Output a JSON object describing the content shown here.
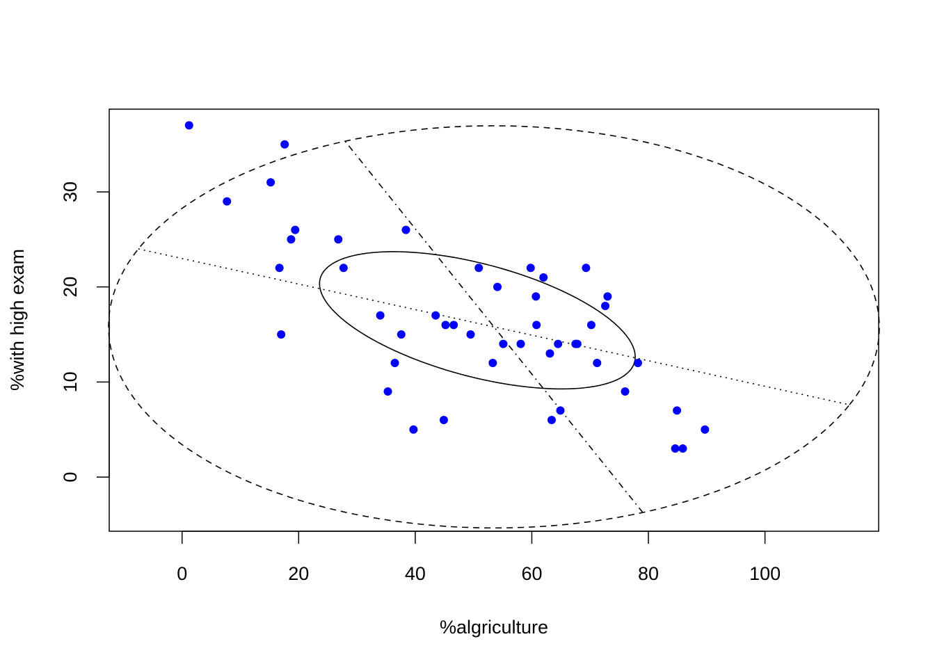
{
  "chart_data": {
    "type": "scatter",
    "title": "",
    "xlabel": "%algriculture",
    "ylabel": "%with high exam",
    "xlim": [
      -12.5,
      119.5
    ],
    "ylim": [
      -5.7,
      38.7
    ],
    "x_ticks": [
      0,
      20,
      40,
      60,
      80,
      100
    ],
    "y_ticks": [
      0,
      10,
      20,
      30
    ],
    "grid": false,
    "point_color": "#0000FF",
    "series": [
      {
        "points": [
          [
            1.2,
            37
          ],
          [
            17.6,
            35
          ],
          [
            15.2,
            31
          ],
          [
            7.7,
            29
          ],
          [
            19.4,
            26
          ],
          [
            38.4,
            26
          ],
          [
            18.7,
            25
          ],
          [
            26.8,
            25
          ],
          [
            16.7,
            22
          ],
          [
            27.7,
            22
          ],
          [
            50.9,
            22
          ],
          [
            59.8,
            22
          ],
          [
            69.3,
            22
          ],
          [
            62.0,
            21
          ],
          [
            54.1,
            20
          ],
          [
            60.7,
            19
          ],
          [
            73.0,
            19
          ],
          [
            72.6,
            18
          ],
          [
            34.0,
            17
          ],
          [
            43.5,
            17
          ],
          [
            17.0,
            15
          ],
          [
            37.6,
            15
          ],
          [
            49.5,
            15
          ],
          [
            45.2,
            16
          ],
          [
            46.6,
            16
          ],
          [
            60.8,
            16
          ],
          [
            70.2,
            16
          ],
          [
            55.1,
            14
          ],
          [
            58.1,
            14
          ],
          [
            64.5,
            14
          ],
          [
            67.5,
            14
          ],
          [
            67.8,
            14
          ],
          [
            63.1,
            13
          ],
          [
            36.5,
            12
          ],
          [
            53.3,
            12
          ],
          [
            71.2,
            12
          ],
          [
            78.2,
            12
          ],
          [
            35.3,
            9
          ],
          [
            76.0,
            9
          ],
          [
            64.9,
            7
          ],
          [
            84.9,
            7
          ],
          [
            44.9,
            6
          ],
          [
            63.4,
            6
          ],
          [
            39.7,
            5
          ],
          [
            89.7,
            5
          ],
          [
            84.6,
            3
          ],
          [
            85.9,
            3
          ]
        ]
      }
    ],
    "overlays": [
      {
        "kind": "ellipse",
        "style": "solid",
        "center": [
          50.66,
          16.49
        ],
        "axes": [
          [
            27.0,
            -4.3
          ],
          [
            -2.06,
            -5.8
          ]
        ]
      },
      {
        "kind": "ellipse",
        "style": "dashed",
        "center": [
          53.5,
          15.8
        ],
        "axes": [
          [
            61.0,
            -8.2
          ],
          [
            25.5,
            19.5
          ]
        ]
      },
      {
        "kind": "line",
        "style": "dotted",
        "from": [
          -7.5,
          24.0
        ],
        "to": [
          114.5,
          7.6
        ]
      },
      {
        "kind": "line",
        "style": "dotdash",
        "from": [
          28.0,
          35.3
        ],
        "to": [
          79.0,
          -3.7
        ]
      }
    ]
  }
}
